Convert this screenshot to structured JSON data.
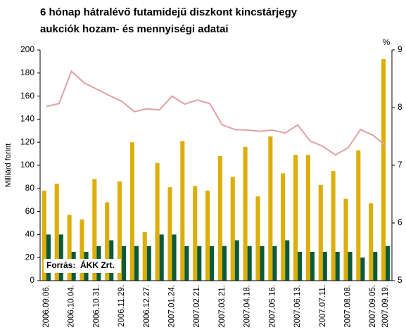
{
  "chart_data": {
    "type": "bar",
    "title": [
      "6 hónap hátralévő futamidejű diszkont kincstárjegy",
      "aukciók hozam- és mennyiségi adatai"
    ],
    "y_label": "Milliárd forint",
    "y2_label": "%",
    "annotation": "Forrás:  ÁKK Zrt.",
    "categories": [
      "2006.09.06.",
      null,
      "2006.10.04.",
      null,
      "2006.10.31.",
      null,
      "2006.11.29.",
      null,
      "2006.12.27.",
      null,
      "2007.01.24.",
      null,
      "2007.02.21.",
      null,
      "2007.03.21.",
      null,
      "2007.04.18.",
      null,
      "2007.05.16.",
      null,
      "2007.06.13.",
      null,
      "2007.07.11.",
      null,
      "2007.08.08.",
      null,
      "2007.09.05.",
      "2007.09.19."
    ],
    "series": [
      {
        "type": "bar",
        "color": "#dcae0a",
        "values": [
          78,
          84,
          57,
          53,
          88,
          68,
          86,
          120,
          42,
          102,
          81,
          121,
          82,
          78,
          108,
          90,
          116,
          73,
          125,
          93,
          109,
          109,
          83,
          95,
          71,
          113,
          67,
          192
        ]
      },
      {
        "type": "bar",
        "color": "#0b5a3a",
        "values": [
          40,
          40,
          25,
          25,
          30,
          35,
          30,
          30,
          30,
          40,
          40,
          30,
          30,
          30,
          30,
          35,
          30,
          30,
          30,
          35,
          25,
          25,
          25,
          25,
          25,
          20,
          25,
          30
        ]
      },
      {
        "type": "line",
        "axis": "y2",
        "color": "#e0a0a4",
        "values": [
          8.02,
          8.07,
          8.63,
          8.43,
          8.32,
          8.21,
          8.11,
          7.93,
          7.98,
          7.96,
          8.2,
          8.06,
          8.13,
          8.07,
          7.7,
          7.62,
          7.61,
          7.59,
          7.61,
          7.56,
          7.7,
          7.42,
          7.33,
          7.18,
          7.3,
          7.62,
          7.52,
          7.34
        ]
      }
    ],
    "ylim": [
      0,
      200
    ],
    "yticks": [
      0,
      20,
      40,
      60,
      80,
      100,
      120,
      140,
      160,
      180,
      200
    ],
    "y2lim": [
      5,
      9
    ],
    "y2ticks": [
      5,
      6,
      7,
      8,
      9
    ]
  }
}
